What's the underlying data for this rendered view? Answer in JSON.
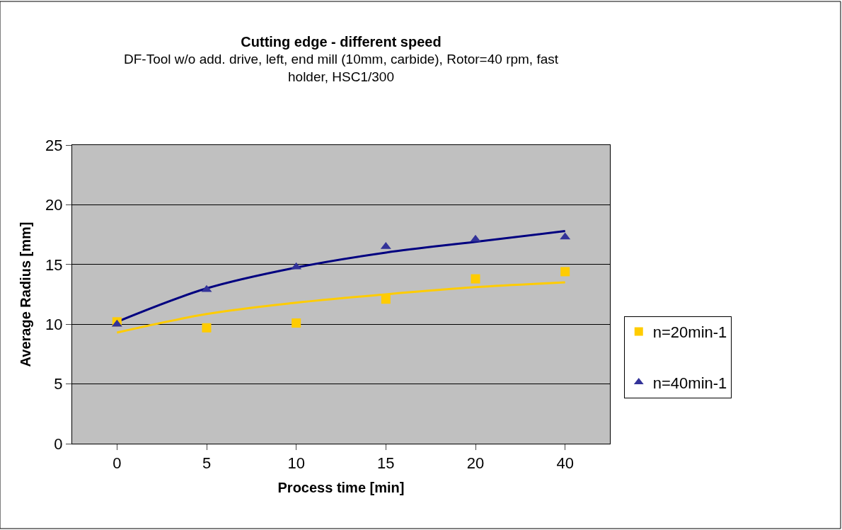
{
  "chart_data": {
    "type": "scatter",
    "title": "Cutting edge - different speed",
    "subtitle": "DF-Tool w/o add. drive, left, end mill (10mm, carbide), Rotor=40 rpm, fast holder, HSC1/300",
    "xlabel": "Process time [min]",
    "ylabel": "Average Radius [mm]",
    "categories": [
      "0",
      "5",
      "10",
      "15",
      "20",
      "40"
    ],
    "series": [
      {
        "name": "n=20min-1",
        "marker": "square",
        "color": "#ffcc00",
        "values": [
          10.2,
          9.7,
          10.1,
          12.1,
          13.8,
          14.4
        ]
      },
      {
        "name": "n=40min-1",
        "marker": "triangle",
        "color": "#333399",
        "values": [
          10.0,
          12.9,
          14.8,
          16.5,
          17.1,
          17.3
        ]
      },
      {
        "type": "line",
        "color": "#ffcc00",
        "values": [
          9.3,
          10.85,
          11.8,
          12.5,
          13.1,
          13.5
        ]
      },
      {
        "type": "line",
        "color": "#000080",
        "values": [
          10.2,
          13.0,
          14.75,
          16.0,
          16.9,
          17.8
        ]
      }
    ],
    "ylim": [
      0,
      25
    ],
    "yticks": [
      0,
      5,
      10,
      15,
      20,
      25
    ],
    "grid": "y",
    "legend": "right"
  }
}
